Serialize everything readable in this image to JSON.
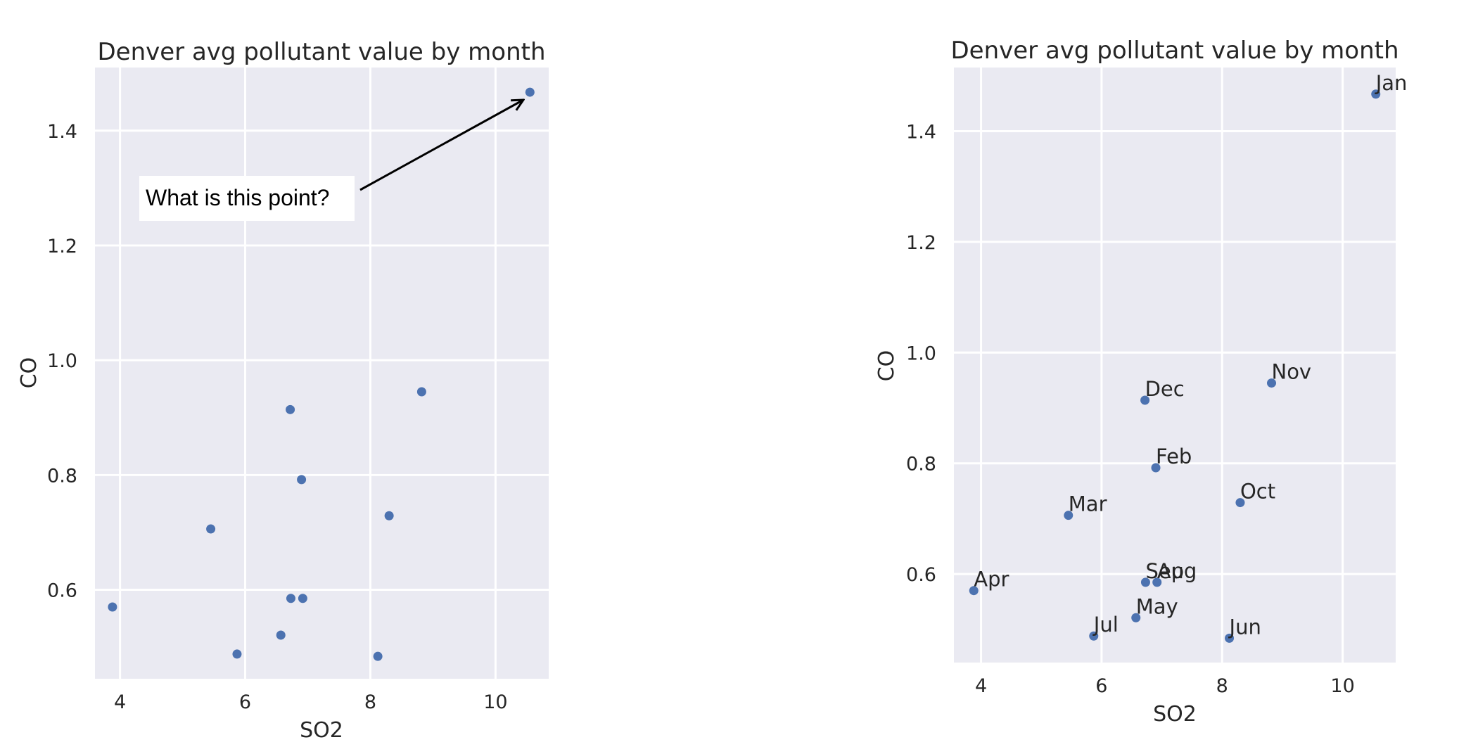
{
  "chart_data": [
    {
      "type": "scatter",
      "title": "Denver avg pollutant value by month",
      "xlabel": "SO2",
      "ylabel": "CO",
      "xlim": [
        3.6,
        10.85
      ],
      "ylim": [
        0.445,
        1.51
      ],
      "xticks": [
        4,
        6,
        8,
        10
      ],
      "yticks": [
        0.6,
        0.8,
        1.0,
        1.2,
        1.4
      ],
      "ytick_labels": [
        "0.6",
        "0.8",
        "1.0",
        "1.2",
        "1.4"
      ],
      "grid": true,
      "background": "#eaeaf2",
      "point_color": "#4c72b0",
      "points": [
        {
          "x": 10.55,
          "y": 1.467
        },
        {
          "x": 6.9,
          "y": 0.792
        },
        {
          "x": 5.45,
          "y": 0.706
        },
        {
          "x": 3.88,
          "y": 0.57
        },
        {
          "x": 6.57,
          "y": 0.521
        },
        {
          "x": 8.12,
          "y": 0.484
        },
        {
          "x": 5.87,
          "y": 0.488
        },
        {
          "x": 6.92,
          "y": 0.585
        },
        {
          "x": 6.73,
          "y": 0.585
        },
        {
          "x": 8.3,
          "y": 0.729
        },
        {
          "x": 8.82,
          "y": 0.945
        },
        {
          "x": 6.72,
          "y": 0.914
        }
      ],
      "annotation": {
        "text": "What is this point?",
        "target_x": 10.55,
        "target_y": 1.467
      }
    },
    {
      "type": "scatter",
      "title": "Denver avg pollutant value by month",
      "xlabel": "SO2",
      "ylabel": "CO",
      "xlim": [
        3.55,
        10.88
      ],
      "ylim": [
        0.44,
        1.515
      ],
      "xticks": [
        4,
        6,
        8,
        10
      ],
      "yticks": [
        0.6,
        0.8,
        1.0,
        1.2,
        1.4
      ],
      "ytick_labels": [
        "0.6",
        "0.8",
        "1.0",
        "1.2",
        "1.4"
      ],
      "grid": true,
      "background": "#eaeaf2",
      "point_color": "#4c72b0",
      "points": [
        {
          "label": "Jan",
          "x": 10.55,
          "y": 1.467
        },
        {
          "label": "Feb",
          "x": 6.9,
          "y": 0.792
        },
        {
          "label": "Mar",
          "x": 5.45,
          "y": 0.706
        },
        {
          "label": "Apr",
          "x": 3.88,
          "y": 0.57
        },
        {
          "label": "May",
          "x": 6.57,
          "y": 0.521
        },
        {
          "label": "Jun",
          "x": 8.12,
          "y": 0.484
        },
        {
          "label": "Jul",
          "x": 5.87,
          "y": 0.488
        },
        {
          "label": "Aug",
          "x": 6.92,
          "y": 0.585
        },
        {
          "label": "Sep",
          "x": 6.73,
          "y": 0.585
        },
        {
          "label": "Oct",
          "x": 8.3,
          "y": 0.729
        },
        {
          "label": "Nov",
          "x": 8.82,
          "y": 0.945
        },
        {
          "label": "Dec",
          "x": 6.72,
          "y": 0.914
        }
      ]
    }
  ]
}
